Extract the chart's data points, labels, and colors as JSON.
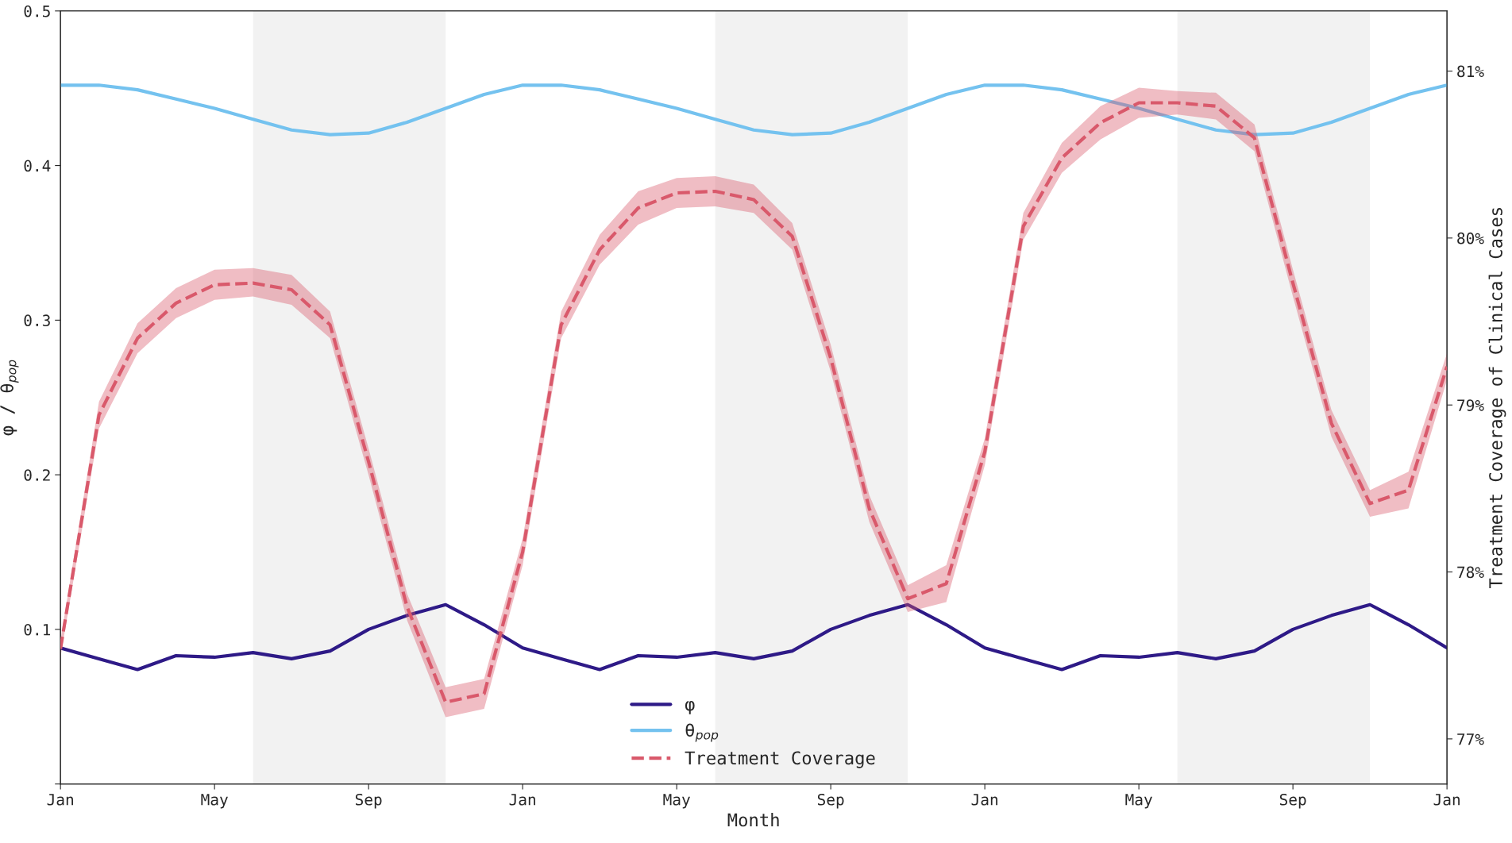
{
  "chart_data": {
    "type": "line",
    "xlabel": "Month",
    "ylabel": "φ / θ$_{pop}$",
    "y2label": "Treatment Coverage of Clinical Cases",
    "categories": [
      "Jan",
      null,
      null,
      null,
      "May",
      null,
      null,
      null,
      "Sep",
      null,
      null,
      null,
      "Jan",
      null,
      null,
      null,
      "May",
      null,
      null,
      null,
      "Sep",
      null,
      null,
      null,
      "Jan",
      null,
      null,
      null,
      "May",
      null,
      null,
      null,
      "Sep",
      null,
      null,
      null,
      "Jan"
    ],
    "ylim": [
      0,
      0.5
    ],
    "yticks": [
      {
        "value": 0,
        "label": null
      },
      0.1,
      0.2,
      0.3,
      0.4,
      0.5
    ],
    "y2lim": [
      76.73,
      81.36
    ],
    "y2ticks": [
      {
        "value": 77,
        "label": "77%"
      },
      {
        "value": 78,
        "label": "78%"
      },
      {
        "value": 79,
        "label": "79%"
      },
      {
        "value": 80,
        "label": "80%"
      },
      {
        "value": 81,
        "label": "81%"
      }
    ],
    "grid": false,
    "legend": "bottom",
    "marker": "none",
    "series": [
      {
        "name": "φ",
        "color": "#2e1a87",
        "line_style": "solid",
        "values": [
          0.088,
          0.081,
          0.074,
          0.083,
          0.082,
          0.085,
          0.081,
          0.086,
          0.1,
          0.109,
          0.116,
          0.103,
          0.088,
          0.081,
          0.074,
          0.083,
          0.082,
          0.085,
          0.081,
          0.086,
          0.1,
          0.109,
          0.116,
          0.103,
          0.088,
          0.081,
          0.074,
          0.083,
          0.082,
          0.085,
          0.081,
          0.086,
          0.1,
          0.109,
          0.116,
          0.103,
          0.088
        ]
      },
      {
        "name": "θ$_{pop}$",
        "color": "#74c2ef",
        "line_style": "solid",
        "values": [
          0.452,
          0.452,
          0.449,
          0.443,
          0.437,
          0.43,
          0.423,
          0.42,
          0.421,
          0.428,
          0.437,
          0.446,
          0.452,
          0.452,
          0.449,
          0.443,
          0.437,
          0.43,
          0.423,
          0.42,
          0.421,
          0.428,
          0.437,
          0.446,
          0.452,
          0.452,
          0.449,
          0.443,
          0.437,
          0.43,
          0.423,
          0.42,
          0.421,
          0.428,
          0.437,
          0.446,
          0.452
        ]
      },
      {
        "name": "Treatment Coverage",
        "color": "#d9596b",
        "line_style": "dashed",
        "axis": "y2",
        "values": [
          77.54,
          78.94,
          79.4,
          79.61,
          79.72,
          79.73,
          79.69,
          79.48,
          78.66,
          77.79,
          77.22,
          77.27,
          78.12,
          79.48,
          79.93,
          80.18,
          80.27,
          80.28,
          80.23,
          80.01,
          79.28,
          78.38,
          77.84,
          77.93,
          78.72,
          80.07,
          80.48,
          80.69,
          80.81,
          80.81,
          80.79,
          80.6,
          79.73,
          78.89,
          78.41,
          78.49,
          79.23
        ],
        "lower": [
          77.49,
          78.86,
          79.31,
          79.52,
          79.63,
          79.65,
          79.6,
          79.4,
          78.58,
          77.71,
          77.13,
          77.18,
          78.04,
          79.4,
          79.84,
          80.08,
          80.18,
          80.19,
          80.15,
          79.93,
          79.2,
          78.3,
          77.76,
          77.82,
          78.64,
          79.99,
          80.39,
          80.59,
          80.72,
          80.74,
          80.71,
          80.52,
          79.65,
          78.81,
          78.33,
          78.38,
          79.15
        ],
        "upper": [
          77.59,
          79.02,
          79.49,
          79.7,
          79.81,
          79.82,
          79.78,
          79.56,
          78.74,
          77.87,
          77.31,
          77.36,
          78.2,
          79.56,
          80.02,
          80.28,
          80.36,
          80.37,
          80.32,
          80.09,
          79.36,
          78.46,
          77.92,
          78.04,
          78.8,
          80.15,
          80.57,
          80.79,
          80.9,
          80.88,
          80.87,
          80.68,
          79.81,
          78.97,
          78.49,
          78.6,
          79.31
        ]
      }
    ]
  }
}
